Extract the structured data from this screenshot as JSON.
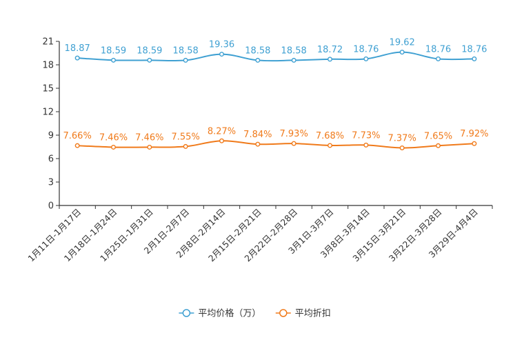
{
  "chart_data": {
    "type": "line",
    "title": "",
    "xlabel": "",
    "ylabel": "",
    "ylim": [
      0,
      21
    ],
    "yticks": [
      0,
      3,
      6,
      9,
      12,
      15,
      18,
      21
    ],
    "grid": false,
    "legend_position": "bottom-center",
    "categories": [
      "1月11日-1月17日",
      "1月18日-1月24日",
      "1月25日-1月31日",
      "2月1日-2月7日",
      "2月8日-2月14日",
      "2月15日-2月21日",
      "2月22日-2月28日",
      "3月1日-3月7日",
      "3月8日-3月14日",
      "3月15日-3月21日",
      "3月22日-3月28日",
      "3月29日-4月4日"
    ],
    "series": [
      {
        "name": "平均价格（万）",
        "color": "#3fa0d2",
        "values": [
          18.87,
          18.59,
          18.59,
          18.58,
          19.36,
          18.58,
          18.58,
          18.72,
          18.76,
          19.62,
          18.76,
          18.76
        ],
        "labels": [
          "18.87",
          "18.59",
          "18.59",
          "18.58",
          "19.36",
          "18.58",
          "18.58",
          "18.72",
          "18.76",
          "19.62",
          "18.76",
          "18.76"
        ]
      },
      {
        "name": "平均折扣",
        "color": "#f07a1a",
        "values": [
          7.66,
          7.46,
          7.46,
          7.55,
          8.27,
          7.84,
          7.93,
          7.68,
          7.73,
          7.37,
          7.65,
          7.92
        ],
        "labels": [
          "7.66%",
          "7.46%",
          "7.46%",
          "7.55%",
          "8.27%",
          "7.84%",
          "7.93%",
          "7.68%",
          "7.73%",
          "7.37%",
          "7.65%",
          "7.92%"
        ]
      }
    ]
  }
}
